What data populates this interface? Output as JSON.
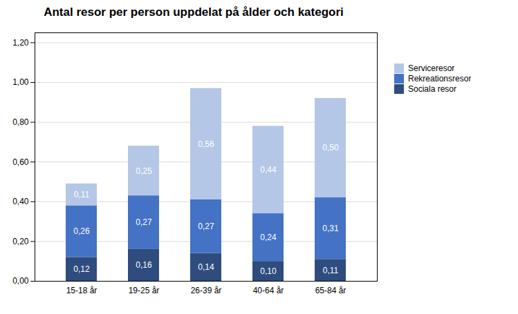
{
  "chart_data": {
    "type": "bar",
    "stacked": true,
    "title": "Antal resor per person uppdelat på ålder och kategori",
    "categories": [
      "15-18 år",
      "19-25 år",
      "26-39 år",
      "40-64 år",
      "65-84 år"
    ],
    "series": [
      {
        "name": "Sociala resor",
        "color": "#2E4C7E",
        "values": [
          0.12,
          0.16,
          0.14,
          0.1,
          0.11
        ],
        "value_labels": [
          "0,12",
          "0,16",
          "0,14",
          "0,10",
          "0,11"
        ]
      },
      {
        "name": "Rekreationsresor",
        "color": "#4472C4",
        "values": [
          0.26,
          0.27,
          0.27,
          0.24,
          0.31
        ],
        "value_labels": [
          "0,26",
          "0,27",
          "0,27",
          "0,24",
          "0,31"
        ]
      },
      {
        "name": "Serviceresor",
        "color": "#B4C7E7",
        "values": [
          0.11,
          0.25,
          0.56,
          0.44,
          0.5
        ],
        "value_labels": [
          "0,11",
          "0,25",
          "0,56",
          "0,44",
          "0,50"
        ]
      }
    ],
    "ylim": [
      0,
      1.25
    ],
    "yticks": [
      {
        "value": 0.0,
        "label": "0,00"
      },
      {
        "value": 0.2,
        "label": "0,20"
      },
      {
        "value": 0.4,
        "label": "0,40"
      },
      {
        "value": 0.6,
        "label": "0,60"
      },
      {
        "value": 0.8,
        "label": "0,80"
      },
      {
        "value": 1.0,
        "label": "1,00"
      },
      {
        "value": 1.2,
        "label": "1,20"
      }
    ],
    "grid": true,
    "legend": "right",
    "data_labels": true
  }
}
